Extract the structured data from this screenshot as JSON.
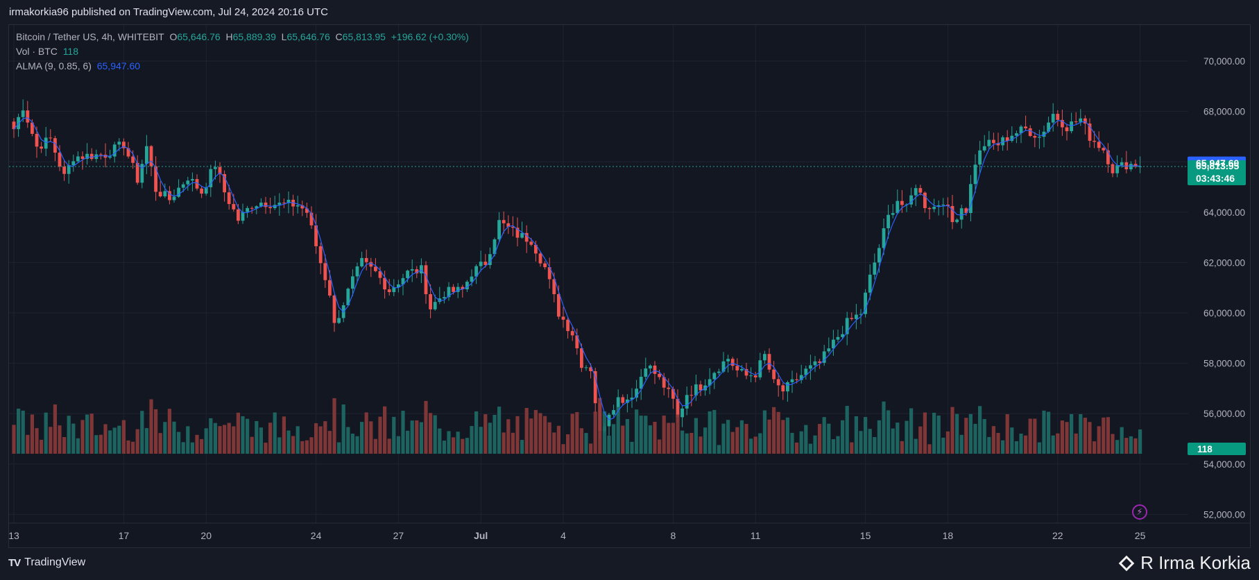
{
  "header": {
    "published": "irmakorkia96 published on TradingView.com, Jul 24, 2024 20:16 UTC"
  },
  "legend": {
    "symbol": "Bitcoin / Tether US, 4h, WHITEBIT",
    "o_label": "O",
    "o_value": "65,646.76",
    "h_label": "H",
    "h_value": "65,889.39",
    "l_label": "L",
    "l_value": "65,646.76",
    "c_label": "C",
    "c_value": "65,813.95",
    "change": "+196.62 (+0.30%)",
    "vol_label": "Vol · BTC",
    "vol_value": "118",
    "alma_label": "ALMA (9, 0.85, 6)",
    "alma_value": "65,947.60"
  },
  "badges": {
    "alma_price": "65,947.60",
    "last_price": "65,813.95",
    "countdown": "03:43:46",
    "volume": "118"
  },
  "footer": {
    "brand": "TradingView",
    "watermark": "R Irma Korkia"
  },
  "colors": {
    "up": "#26a69a",
    "down": "#ef5350",
    "ma": "#2962ff",
    "background": "#131722",
    "grid": "#1f2330"
  },
  "chart_data": {
    "type": "candlestick",
    "symbol": "Bitcoin / Tether US",
    "interval": "4h",
    "exchange": "WHITEBIT",
    "ylim": [
      52600,
      71200
    ],
    "y_ticks": [
      "70,000.00",
      "68,000.00",
      "66,000.00",
      "64,000.00",
      "62,000.00",
      "60,000.00",
      "58,000.00",
      "56,000.00",
      "54,000.00",
      "52,000.00"
    ],
    "y_tick_values": [
      70000,
      68000,
      66000,
      64000,
      62000,
      60000,
      58000,
      56000,
      54000,
      52000
    ],
    "x_ticks": [
      {
        "label": "13",
        "bar": 0
      },
      {
        "label": "17",
        "bar": 24
      },
      {
        "label": "20",
        "bar": 42
      },
      {
        "label": "24",
        "bar": 66
      },
      {
        "label": "27",
        "bar": 84
      },
      {
        "label": "Jul",
        "bar": 102
      },
      {
        "label": "4",
        "bar": 120
      },
      {
        "label": "8",
        "bar": 144
      },
      {
        "label": "11",
        "bar": 162
      },
      {
        "label": "15",
        "bar": 186
      },
      {
        "label": "18",
        "bar": 204
      },
      {
        "label": "22",
        "bar": 228
      },
      {
        "label": "25",
        "bar": 246
      }
    ],
    "bars_total": 246,
    "anchors": [
      {
        "bar": 0,
        "price": 67300
      },
      {
        "bar": 2,
        "price": 68200
      },
      {
        "bar": 5,
        "price": 66600
      },
      {
        "bar": 8,
        "price": 66900
      },
      {
        "bar": 11,
        "price": 65400
      },
      {
        "bar": 13,
        "price": 66200
      },
      {
        "bar": 20,
        "price": 66300
      },
      {
        "bar": 24,
        "price": 66700
      },
      {
        "bar": 27,
        "price": 65300
      },
      {
        "bar": 29,
        "price": 66600
      },
      {
        "bar": 31,
        "price": 64900
      },
      {
        "bar": 34,
        "price": 64500
      },
      {
        "bar": 38,
        "price": 65400
      },
      {
        "bar": 41,
        "price": 64800
      },
      {
        "bar": 44,
        "price": 65900
      },
      {
        "bar": 46,
        "price": 64800
      },
      {
        "bar": 49,
        "price": 63700
      },
      {
        "bar": 52,
        "price": 64300
      },
      {
        "bar": 54,
        "price": 64400
      },
      {
        "bar": 58,
        "price": 64300
      },
      {
        "bar": 62,
        "price": 64300
      },
      {
        "bar": 64,
        "price": 64000
      },
      {
        "bar": 67,
        "price": 62000
      },
      {
        "bar": 69,
        "price": 60800
      },
      {
        "bar": 70,
        "price": 59500
      },
      {
        "bar": 72,
        "price": 60400
      },
      {
        "bar": 74,
        "price": 61300
      },
      {
        "bar": 76,
        "price": 62000
      },
      {
        "bar": 79,
        "price": 61600
      },
      {
        "bar": 82,
        "price": 60900
      },
      {
        "bar": 86,
        "price": 61600
      },
      {
        "bar": 89,
        "price": 61700
      },
      {
        "bar": 91,
        "price": 60200
      },
      {
        "bar": 94,
        "price": 60800
      },
      {
        "bar": 98,
        "price": 60900
      },
      {
        "bar": 100,
        "price": 61600
      },
      {
        "bar": 103,
        "price": 62000
      },
      {
        "bar": 106,
        "price": 63600
      },
      {
        "bar": 110,
        "price": 63100
      },
      {
        "bar": 113,
        "price": 62900
      },
      {
        "bar": 116,
        "price": 61800
      },
      {
        "bar": 119,
        "price": 60000
      },
      {
        "bar": 122,
        "price": 59200
      },
      {
        "bar": 124,
        "price": 58000
      },
      {
        "bar": 126,
        "price": 57800
      },
      {
        "bar": 128,
        "price": 55200
      },
      {
        "bar": 130,
        "price": 56100
      },
      {
        "bar": 132,
        "price": 56600
      },
      {
        "bar": 134,
        "price": 56600
      },
      {
        "bar": 136,
        "price": 57000
      },
      {
        "bar": 138,
        "price": 58000
      },
      {
        "bar": 140,
        "price": 57600
      },
      {
        "bar": 142,
        "price": 57100
      },
      {
        "bar": 144,
        "price": 56500
      },
      {
        "bar": 145,
        "price": 55800
      },
      {
        "bar": 147,
        "price": 56800
      },
      {
        "bar": 150,
        "price": 57100
      },
      {
        "bar": 153,
        "price": 57700
      },
      {
        "bar": 156,
        "price": 58200
      },
      {
        "bar": 158,
        "price": 57700
      },
      {
        "bar": 160,
        "price": 57500
      },
      {
        "bar": 162,
        "price": 57600
      },
      {
        "bar": 164,
        "price": 58300
      },
      {
        "bar": 166,
        "price": 57200
      },
      {
        "bar": 168,
        "price": 56900
      },
      {
        "bar": 170,
        "price": 57200
      },
      {
        "bar": 173,
        "price": 57700
      },
      {
        "bar": 176,
        "price": 58000
      },
      {
        "bar": 179,
        "price": 58800
      },
      {
        "bar": 182,
        "price": 59600
      },
      {
        "bar": 185,
        "price": 60000
      },
      {
        "bar": 187,
        "price": 61400
      },
      {
        "bar": 189,
        "price": 62600
      },
      {
        "bar": 191,
        "price": 63800
      },
      {
        "bar": 193,
        "price": 64500
      },
      {
        "bar": 195,
        "price": 64100
      },
      {
        "bar": 197,
        "price": 65100
      },
      {
        "bar": 199,
        "price": 64300
      },
      {
        "bar": 201,
        "price": 64200
      },
      {
        "bar": 203,
        "price": 64500
      },
      {
        "bar": 205,
        "price": 63600
      },
      {
        "bar": 207,
        "price": 64200
      },
      {
        "bar": 208,
        "price": 64100
      },
      {
        "bar": 210,
        "price": 66000
      },
      {
        "bar": 212,
        "price": 66700
      },
      {
        "bar": 215,
        "price": 66700
      },
      {
        "bar": 218,
        "price": 67100
      },
      {
        "bar": 221,
        "price": 67300
      },
      {
        "bar": 224,
        "price": 67000
      },
      {
        "bar": 227,
        "price": 67900
      },
      {
        "bar": 230,
        "price": 67400
      },
      {
        "bar": 233,
        "price": 67700
      },
      {
        "bar": 235,
        "price": 67000
      },
      {
        "bar": 238,
        "price": 66500
      },
      {
        "bar": 240,
        "price": 65700
      },
      {
        "bar": 243,
        "price": 65900
      },
      {
        "bar": 245,
        "price": 65900
      },
      {
        "bar": 246,
        "price": 65814
      }
    ],
    "last": {
      "open": 65646.76,
      "high": 65889.39,
      "low": 65646.76,
      "close": 65813.95,
      "volume": 118
    },
    "alma_last": 65947.6
  }
}
